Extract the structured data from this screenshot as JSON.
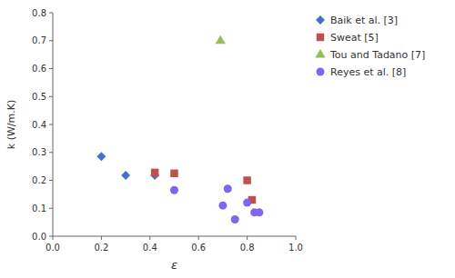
{
  "chart_data": {
    "type": "scatter",
    "xlabel": "ε",
    "ylabel": "k (W/m.K)",
    "series": [
      {
        "name": "Baik et al. [3]",
        "color": "#4472C4",
        "marker": "diamond",
        "x": [
          0.2,
          0.3,
          0.42
        ],
        "values": [
          0.285,
          0.218,
          0.218
        ]
      },
      {
        "name": "Sweat [5]",
        "color": "#C0504D",
        "marker": "square",
        "x": [
          0.42,
          0.5,
          0.8,
          0.82
        ],
        "values": [
          0.228,
          0.225,
          0.2,
          0.13
        ]
      },
      {
        "name": "Tou and Tadano [7]",
        "color": "#9BBB59",
        "marker": "triangle",
        "x": [
          0.69
        ],
        "values": [
          0.7
        ]
      },
      {
        "name": "Reyes et al. [8]",
        "color": "#7B68EE",
        "marker": "circle",
        "x": [
          0.5,
          0.7,
          0.72,
          0.75,
          0.8,
          0.83,
          0.85
        ],
        "values": [
          0.165,
          0.11,
          0.17,
          0.06,
          0.12,
          0.085,
          0.085
        ]
      }
    ],
    "xlim": [
      0,
      1
    ],
    "ylim": [
      0,
      0.8
    ],
    "xticks": [
      {
        "value": 0,
        "label": "0.0"
      },
      0.2,
      0.4,
      0.6,
      0.8,
      {
        "value": 1,
        "label": "1.0"
      }
    ],
    "yticks": [
      {
        "value": 0,
        "label": "0.0"
      },
      0.1,
      0.2,
      0.3,
      0.4,
      0.5,
      0.6,
      0.7,
      0.8
    ],
    "grid": false,
    "legend": "right"
  }
}
